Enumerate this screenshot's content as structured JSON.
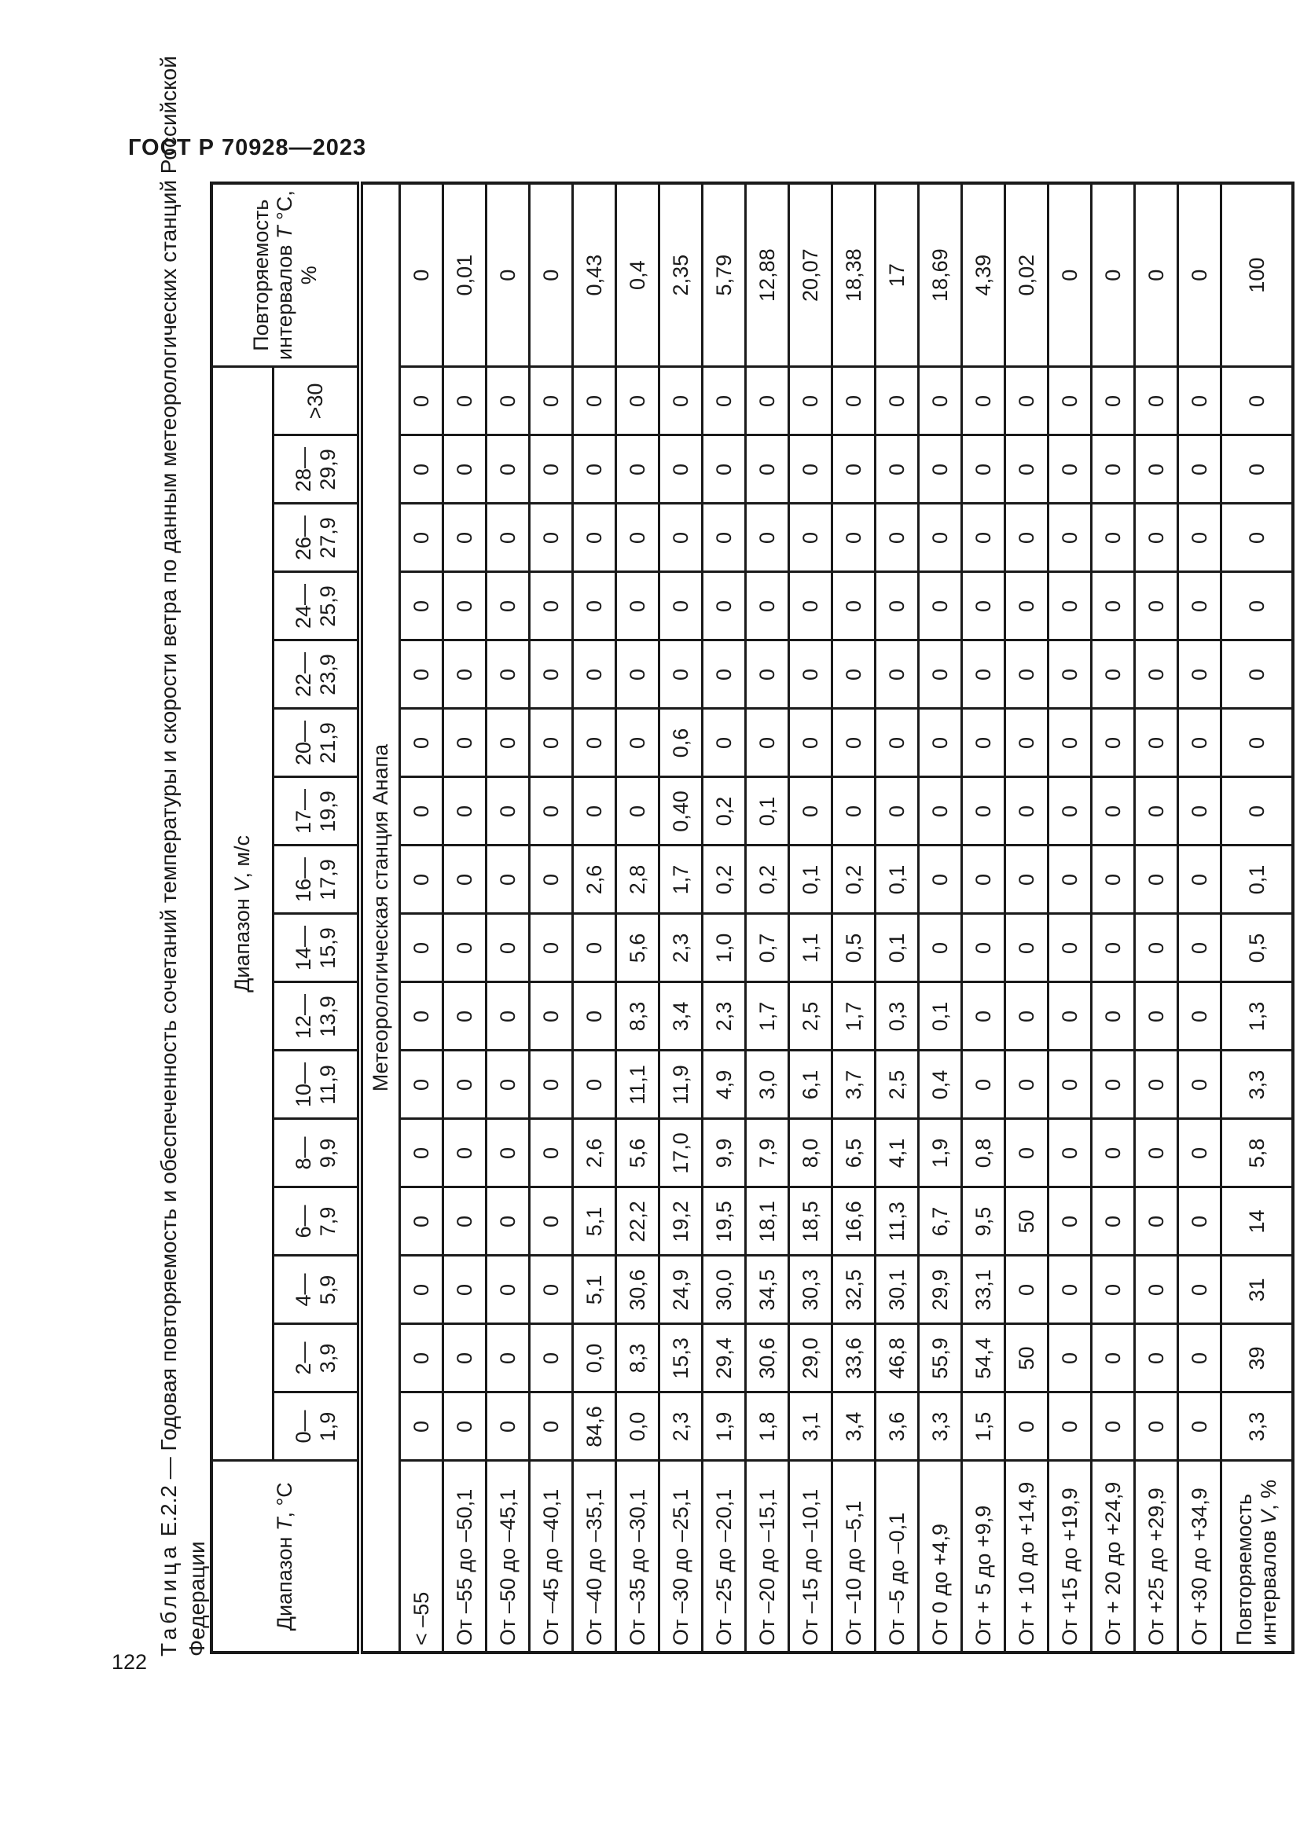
{
  "page": {
    "standard_code": "ГОСТ Р 70928—2023",
    "page_number": "122"
  },
  "caption": {
    "word": "Таблица",
    "rest_line1": " Е.2.2 — Годовая повторяемость и обеспеченность сочетаний температуры и скорости ветра по данным метеорологических станций Российской",
    "line2": "Федерации"
  },
  "table": {
    "header": {
      "temp_col": {
        "prefix": "Диапазон ",
        "variable": "T",
        "suffix": ", °С"
      },
      "wind_col": {
        "prefix": "Диапазон ",
        "variable": "V",
        "suffix": ", м/с"
      },
      "rep_t_col": {
        "prefix": "Повторяемость интервалов ",
        "variable": "T",
        "suffix": " °С, %"
      },
      "wind_ranges": [
        "0—\n1,9",
        "2—\n3,9",
        "4—\n5,9",
        "6—\n7,9",
        "8—\n9,9",
        "10—\n11,9",
        "12—\n13,9",
        "14—\n15,9",
        "16—\n17,9",
        "17—\n19,9",
        "20—\n21,9",
        "22—\n23,9",
        "24—\n25,9",
        "26—\n27,9",
        "28—\n29,9",
        ">30"
      ]
    },
    "station_row": "Метеорологическая станция Анапа",
    "rows": [
      {
        "label": "< –55",
        "values": [
          "0",
          "0",
          "0",
          "0",
          "0",
          "0",
          "0",
          "0",
          "0",
          "0",
          "0",
          "0",
          "0",
          "0",
          "0",
          "0"
        ],
        "rep_t": "0"
      },
      {
        "label": "От –55 до –50,1",
        "values": [
          "0",
          "0",
          "0",
          "0",
          "0",
          "0",
          "0",
          "0",
          "0",
          "0",
          "0",
          "0",
          "0",
          "0",
          "0",
          "0"
        ],
        "rep_t": "0,01"
      },
      {
        "label": "От –50 до –45,1",
        "values": [
          "0",
          "0",
          "0",
          "0",
          "0",
          "0",
          "0",
          "0",
          "0",
          "0",
          "0",
          "0",
          "0",
          "0",
          "0",
          "0"
        ],
        "rep_t": "0"
      },
      {
        "label": "От –45 до –40,1",
        "values": [
          "0",
          "0",
          "0",
          "0",
          "0",
          "0",
          "0",
          "0",
          "0",
          "0",
          "0",
          "0",
          "0",
          "0",
          "0",
          "0"
        ],
        "rep_t": "0"
      },
      {
        "label": "От –40 до –35,1",
        "values": [
          "84,6",
          "0,0",
          "5,1",
          "5,1",
          "2,6",
          "0",
          "0",
          "0",
          "2,6",
          "0",
          "0",
          "0",
          "0",
          "0",
          "0",
          "0"
        ],
        "rep_t": "0,43"
      },
      {
        "label": "От –35 до –30,1",
        "values": [
          "0,0",
          "8,3",
          "30,6",
          "22,2",
          "5,6",
          "11,1",
          "8,3",
          "5,6",
          "2,8",
          "0",
          "0",
          "0",
          "0",
          "0",
          "0",
          "0"
        ],
        "rep_t": "0,4"
      },
      {
        "label": "От –30 до –25,1",
        "values": [
          "2,3",
          "15,3",
          "24,9",
          "19,2",
          "17,0",
          "11,9",
          "3,4",
          "2,3",
          "1,7",
          "0,40",
          "0,6",
          "0",
          "0",
          "0",
          "0",
          "0"
        ],
        "rep_t": "2,35"
      },
      {
        "label": "От –25 до –20,1",
        "values": [
          "1,9",
          "29,4",
          "30,0",
          "19,5",
          "9,9",
          "4,9",
          "2,3",
          "1,0",
          "0,2",
          "0,2",
          "0",
          "0",
          "0",
          "0",
          "0",
          "0"
        ],
        "rep_t": "5,79"
      },
      {
        "label": "От –20 до –15,1",
        "values": [
          "1,8",
          "30,6",
          "34,5",
          "18,1",
          "7,9",
          "3,0",
          "1,7",
          "0,7",
          "0,2",
          "0,1",
          "0",
          "0",
          "0",
          "0",
          "0",
          "0"
        ],
        "rep_t": "12,88"
      },
      {
        "label": "От –15 до –10,1",
        "values": [
          "3,1",
          "29,0",
          "30,3",
          "18,5",
          "8,0",
          "6,1",
          "2,5",
          "1,1",
          "0,1",
          "0",
          "0",
          "0",
          "0",
          "0",
          "0",
          "0"
        ],
        "rep_t": "20,07"
      },
      {
        "label": "От –10 до –5,1",
        "values": [
          "3,4",
          "33,6",
          "32,5",
          "16,6",
          "6,5",
          "3,7",
          "1,7",
          "0,5",
          "0,2",
          "0",
          "0",
          "0",
          "0",
          "0",
          "0",
          "0"
        ],
        "rep_t": "18,38"
      },
      {
        "label": "От –5 до –0,1",
        "values": [
          "3,6",
          "46,8",
          "30,1",
          "11,3",
          "4,1",
          "2,5",
          "0,3",
          "0,1",
          "0,1",
          "0",
          "0",
          "0",
          "0",
          "0",
          "0",
          "0"
        ],
        "rep_t": "17"
      },
      {
        "label": "От 0 до +4,9",
        "values": [
          "3,3",
          "55,9",
          "29,9",
          "6,7",
          "1,9",
          "0,4",
          "0,1",
          "0",
          "0",
          "0",
          "0",
          "0",
          "0",
          "0",
          "0",
          "0"
        ],
        "rep_t": "18,69"
      },
      {
        "label": "От + 5 до +9,9",
        "values": [
          "1,5",
          "54,4",
          "33,1",
          "9,5",
          "0,8",
          "0",
          "0",
          "0",
          "0",
          "0",
          "0",
          "0",
          "0",
          "0",
          "0",
          "0"
        ],
        "rep_t": "4,39"
      },
      {
        "label": "От + 10 до +14,9",
        "values": [
          "0",
          "50",
          "0",
          "50",
          "0",
          "0",
          "0",
          "0",
          "0",
          "0",
          "0",
          "0",
          "0",
          "0",
          "0",
          "0"
        ],
        "rep_t": "0,02"
      },
      {
        "label": "От +15 до +19,9",
        "values": [
          "0",
          "0",
          "0",
          "0",
          "0",
          "0",
          "0",
          "0",
          "0",
          "0",
          "0",
          "0",
          "0",
          "0",
          "0",
          "0"
        ],
        "rep_t": "0"
      },
      {
        "label": "От + 20 до +24,9",
        "values": [
          "0",
          "0",
          "0",
          "0",
          "0",
          "0",
          "0",
          "0",
          "0",
          "0",
          "0",
          "0",
          "0",
          "0",
          "0",
          "0"
        ],
        "rep_t": "0"
      },
      {
        "label": "От +25 до +29,9",
        "values": [
          "0",
          "0",
          "0",
          "0",
          "0",
          "0",
          "0",
          "0",
          "0",
          "0",
          "0",
          "0",
          "0",
          "0",
          "0",
          "0"
        ],
        "rep_t": "0"
      },
      {
        "label": "От +30 до +34,9",
        "values": [
          "0",
          "0",
          "0",
          "0",
          "0",
          "0",
          "0",
          "0",
          "0",
          "0",
          "0",
          "0",
          "0",
          "0",
          "0",
          "0"
        ],
        "rep_t": "0"
      }
    ],
    "totals_row": {
      "label_prefix": "Повторяемость интервалов ",
      "label_variable": "V",
      "label_suffix": ", %",
      "values": [
        "3,3",
        "39",
        "31",
        "14",
        "5,8",
        "3,3",
        "1,3",
        "0,5",
        "0,1",
        "0",
        "0",
        "0",
        "0",
        "0",
        "0",
        "0"
      ],
      "rep_t": "100"
    }
  }
}
